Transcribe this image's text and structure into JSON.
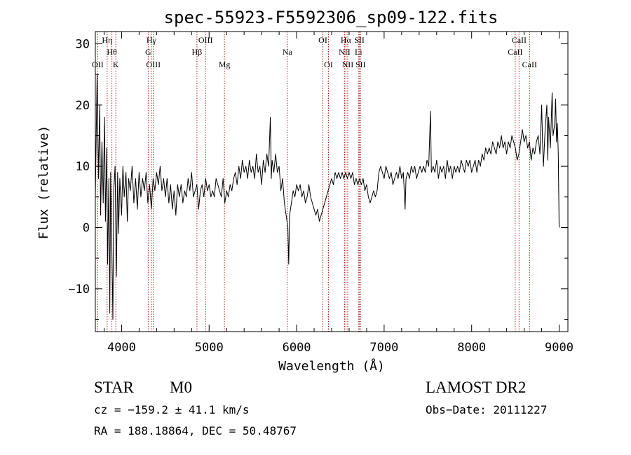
{
  "chart_data": {
    "type": "line",
    "title": "spec-55923-F5592306_sp09-122.fits",
    "xlabel": "Wavelength (Å)",
    "ylabel": "Flux (relative)",
    "xlim": [
      3700,
      9100
    ],
    "ylim": [
      -17,
      32
    ],
    "x_ticks": [
      4000,
      5000,
      6000,
      7000,
      8000,
      9000
    ],
    "y_ticks": [
      -10,
      0,
      10,
      20,
      30
    ],
    "grid": false,
    "series": [
      {
        "points": [
          [
            3700,
            5
          ],
          [
            3720,
            25
          ],
          [
            3735,
            8
          ],
          [
            3750,
            20
          ],
          [
            3760,
            2
          ],
          [
            3775,
            14
          ],
          [
            3790,
            4
          ],
          [
            3805,
            18
          ],
          [
            3815,
            1
          ],
          [
            3830,
            13
          ],
          [
            3840,
            -6
          ],
          [
            3855,
            8
          ],
          [
            3865,
            -14
          ],
          [
            3875,
            9
          ],
          [
            3885,
            0
          ],
          [
            3900,
            -15
          ],
          [
            3910,
            6
          ],
          [
            3925,
            10
          ],
          [
            3940,
            -8
          ],
          [
            3955,
            9
          ],
          [
            3965,
            -1
          ],
          [
            3980,
            8
          ],
          [
            4000,
            2
          ],
          [
            4015,
            10
          ],
          [
            4030,
            5
          ],
          [
            4050,
            9
          ],
          [
            4065,
            1
          ],
          [
            4080,
            8
          ],
          [
            4100,
            6
          ],
          [
            4120,
            10
          ],
          [
            4140,
            4
          ],
          [
            4160,
            8
          ],
          [
            4180,
            3
          ],
          [
            4200,
            9
          ],
          [
            4220,
            5
          ],
          [
            4240,
            8
          ],
          [
            4260,
            6
          ],
          [
            4280,
            9
          ],
          [
            4300,
            4
          ],
          [
            4320,
            7
          ],
          [
            4340,
            3
          ],
          [
            4360,
            8
          ],
          [
            4380,
            6
          ],
          [
            4400,
            9
          ],
          [
            4420,
            7
          ],
          [
            4440,
            10
          ],
          [
            4460,
            6
          ],
          [
            4480,
            8
          ],
          [
            4500,
            5
          ],
          [
            4520,
            8
          ],
          [
            4540,
            4
          ],
          [
            4560,
            7
          ],
          [
            4580,
            3
          ],
          [
            4600,
            6
          ],
          [
            4620,
            2
          ],
          [
            4640,
            7
          ],
          [
            4660,
            5
          ],
          [
            4680,
            7
          ],
          [
            4700,
            4
          ],
          [
            4720,
            6
          ],
          [
            4740,
            5
          ],
          [
            4760,
            8
          ],
          [
            4780,
            6
          ],
          [
            4800,
            9
          ],
          [
            4820,
            5
          ],
          [
            4840,
            6
          ],
          [
            4860,
            7
          ],
          [
            4880,
            3
          ],
          [
            4900,
            6
          ],
          [
            4920,
            7
          ],
          [
            4940,
            5
          ],
          [
            4960,
            8
          ],
          [
            4980,
            6
          ],
          [
            5000,
            7
          ],
          [
            5020,
            5
          ],
          [
            5040,
            6
          ],
          [
            5060,
            5
          ],
          [
            5080,
            8
          ],
          [
            5100,
            7
          ],
          [
            5120,
            6
          ],
          [
            5140,
            5
          ],
          [
            5160,
            8
          ],
          [
            5180,
            4
          ],
          [
            5200,
            6
          ],
          [
            5220,
            5
          ],
          [
            5240,
            7
          ],
          [
            5260,
            6
          ],
          [
            5280,
            8
          ],
          [
            5300,
            9
          ],
          [
            5320,
            7
          ],
          [
            5340,
            10
          ],
          [
            5360,
            8
          ],
          [
            5380,
            11
          ],
          [
            5400,
            9
          ],
          [
            5420,
            10
          ],
          [
            5440,
            8
          ],
          [
            5460,
            11
          ],
          [
            5480,
            9
          ],
          [
            5500,
            10
          ],
          [
            5520,
            8
          ],
          [
            5540,
            12
          ],
          [
            5560,
            9
          ],
          [
            5580,
            10
          ],
          [
            5600,
            7
          ],
          [
            5620,
            11
          ],
          [
            5640,
            9
          ],
          [
            5660,
            12
          ],
          [
            5680,
            10
          ],
          [
            5700,
            18
          ],
          [
            5710,
            8
          ],
          [
            5720,
            11
          ],
          [
            5740,
            9
          ],
          [
            5760,
            12
          ],
          [
            5780,
            9
          ],
          [
            5800,
            10
          ],
          [
            5820,
            6
          ],
          [
            5840,
            8
          ],
          [
            5860,
            4
          ],
          [
            5880,
            2
          ],
          [
            5900,
            0
          ],
          [
            5910,
            -6
          ],
          [
            5920,
            2
          ],
          [
            5940,
            4
          ],
          [
            5960,
            6
          ],
          [
            5980,
            5
          ],
          [
            6000,
            7
          ],
          [
            6020,
            6
          ],
          [
            6040,
            7
          ],
          [
            6060,
            5
          ],
          [
            6080,
            6
          ],
          [
            6100,
            4
          ],
          [
            6120,
            5
          ],
          [
            6140,
            7
          ],
          [
            6160,
            5
          ],
          [
            6180,
            4
          ],
          [
            6200,
            3
          ],
          [
            6220,
            2
          ],
          [
            6240,
            3
          ],
          [
            6260,
            1
          ],
          [
            6280,
            2
          ],
          [
            6300,
            3
          ],
          [
            6320,
            4
          ],
          [
            6340,
            5
          ],
          [
            6360,
            6
          ],
          [
            6380,
            7
          ],
          [
            6400,
            8
          ],
          [
            6420,
            7
          ],
          [
            6440,
            9
          ],
          [
            6460,
            8
          ],
          [
            6480,
            9
          ],
          [
            6500,
            8
          ],
          [
            6520,
            9
          ],
          [
            6540,
            8
          ],
          [
            6560,
            9
          ],
          [
            6580,
            8
          ],
          [
            6600,
            9
          ],
          [
            6620,
            8
          ],
          [
            6640,
            9
          ],
          [
            6660,
            7
          ],
          [
            6680,
            8
          ],
          [
            6700,
            7
          ],
          [
            6720,
            8
          ],
          [
            6740,
            7
          ],
          [
            6760,
            8
          ],
          [
            6780,
            6
          ],
          [
            6800,
            7
          ],
          [
            6820,
            5
          ],
          [
            6840,
            4
          ],
          [
            6860,
            5
          ],
          [
            6880,
            6
          ],
          [
            6900,
            5
          ],
          [
            6920,
            6
          ],
          [
            6940,
            9
          ],
          [
            6960,
            10
          ],
          [
            6980,
            9
          ],
          [
            7000,
            8
          ],
          [
            7020,
            10
          ],
          [
            7040,
            9
          ],
          [
            7060,
            8
          ],
          [
            7080,
            9
          ],
          [
            7100,
            7
          ],
          [
            7120,
            8
          ],
          [
            7140,
            9
          ],
          [
            7160,
            8
          ],
          [
            7180,
            10
          ],
          [
            7200,
            8
          ],
          [
            7220,
            9
          ],
          [
            7240,
            3
          ],
          [
            7250,
            8
          ],
          [
            7270,
            9
          ],
          [
            7290,
            8
          ],
          [
            7310,
            10
          ],
          [
            7330,
            9
          ],
          [
            7350,
            10
          ],
          [
            7370,
            8
          ],
          [
            7390,
            9
          ],
          [
            7410,
            10
          ],
          [
            7430,
            9
          ],
          [
            7450,
            10
          ],
          [
            7470,
            9
          ],
          [
            7490,
            11
          ],
          [
            7510,
            10
          ],
          [
            7530,
            19
          ],
          [
            7540,
            9
          ],
          [
            7560,
            10
          ],
          [
            7580,
            9
          ],
          [
            7600,
            11
          ],
          [
            7620,
            8
          ],
          [
            7640,
            10
          ],
          [
            7660,
            9
          ],
          [
            7680,
            10
          ],
          [
            7700,
            8
          ],
          [
            7720,
            11
          ],
          [
            7740,
            9
          ],
          [
            7760,
            10
          ],
          [
            7780,
            8
          ],
          [
            7800,
            10
          ],
          [
            7820,
            9
          ],
          [
            7840,
            10
          ],
          [
            7860,
            9
          ],
          [
            7880,
            11
          ],
          [
            7900,
            10
          ],
          [
            7920,
            9
          ],
          [
            7940,
            11
          ],
          [
            7960,
            10
          ],
          [
            7980,
            11
          ],
          [
            8000,
            9
          ],
          [
            8020,
            10
          ],
          [
            8040,
            11
          ],
          [
            8060,
            9
          ],
          [
            8080,
            11
          ],
          [
            8100,
            10
          ],
          [
            8120,
            12
          ],
          [
            8140,
            11
          ],
          [
            8160,
            13
          ],
          [
            8180,
            12
          ],
          [
            8200,
            13
          ],
          [
            8220,
            12
          ],
          [
            8240,
            14
          ],
          [
            8260,
            13
          ],
          [
            8280,
            12
          ],
          [
            8300,
            14
          ],
          [
            8320,
            13
          ],
          [
            8340,
            15
          ],
          [
            8360,
            13
          ],
          [
            8380,
            14
          ],
          [
            8400,
            12
          ],
          [
            8420,
            14
          ],
          [
            8440,
            13
          ],
          [
            8460,
            15
          ],
          [
            8480,
            14
          ],
          [
            8500,
            13
          ],
          [
            8520,
            11
          ],
          [
            8540,
            12
          ],
          [
            8560,
            14
          ],
          [
            8580,
            16
          ],
          [
            8600,
            14
          ],
          [
            8620,
            15
          ],
          [
            8640,
            13
          ],
          [
            8660,
            14
          ],
          [
            8680,
            11
          ],
          [
            8700,
            13
          ],
          [
            8720,
            12
          ],
          [
            8740,
            14
          ],
          [
            8760,
            15
          ],
          [
            8780,
            12
          ],
          [
            8800,
            20
          ],
          [
            8810,
            14
          ],
          [
            8820,
            10
          ],
          [
            8840,
            16
          ],
          [
            8860,
            20
          ],
          [
            8870,
            11
          ],
          [
            8880,
            18
          ],
          [
            8900,
            13
          ],
          [
            8920,
            22
          ],
          [
            8930,
            15
          ],
          [
            8950,
            17
          ],
          [
            8960,
            21
          ],
          [
            8970,
            14
          ],
          [
            8980,
            17
          ],
          [
            8990,
            12
          ],
          [
            9000,
            0
          ]
        ]
      }
    ],
    "lines": [
      {
        "wl": 3727,
        "label": "OII",
        "row": 3
      },
      {
        "wl": 3835,
        "label": "Hη",
        "row": 1
      },
      {
        "wl": 3889,
        "label": "Hθ",
        "row": 2
      },
      {
        "wl": 3934,
        "label": "K",
        "row": 3
      },
      {
        "wl": 4304,
        "label": "G",
        "row": 2
      },
      {
        "wl": 4340,
        "label": "Hγ",
        "row": 1
      },
      {
        "wl": 4363,
        "label": "OIII",
        "row": 3
      },
      {
        "wl": 4861,
        "label": "Hβ",
        "row": 2
      },
      {
        "wl": 4959,
        "label": "OIII",
        "row": 1
      },
      {
        "wl": 5175,
        "label": "Mg",
        "row": 3
      },
      {
        "wl": 5893,
        "label": "Na",
        "row": 2
      },
      {
        "wl": 6300,
        "label": "OI",
        "row": 1
      },
      {
        "wl": 6364,
        "label": "OI",
        "row": 3
      },
      {
        "wl": 6548,
        "label": "NII",
        "row": 2
      },
      {
        "wl": 6563,
        "label": "Hα",
        "row": 1
      },
      {
        "wl": 6584,
        "label": "NII",
        "row": 3
      },
      {
        "wl": 6707,
        "label": "Li",
        "row": 2
      },
      {
        "wl": 6717,
        "label": "SII",
        "row": 1
      },
      {
        "wl": 6731,
        "label": "SII",
        "row": 3
      },
      {
        "wl": 8498,
        "label": "CaII",
        "row": 2
      },
      {
        "wl": 8542,
        "label": "CaII",
        "row": 1
      },
      {
        "wl": 8662,
        "label": "CaII",
        "row": 3
      }
    ],
    "line_color": "#b22222"
  },
  "info": {
    "object_class": "STAR",
    "subclass": "M0",
    "survey": "LAMOST DR2",
    "redshift": "cz = −159.2 ± 41.1 km/s",
    "obs_date": "Obs−Date: 20111227",
    "coords": "RA = 188.18864, DEC =  50.48767"
  }
}
